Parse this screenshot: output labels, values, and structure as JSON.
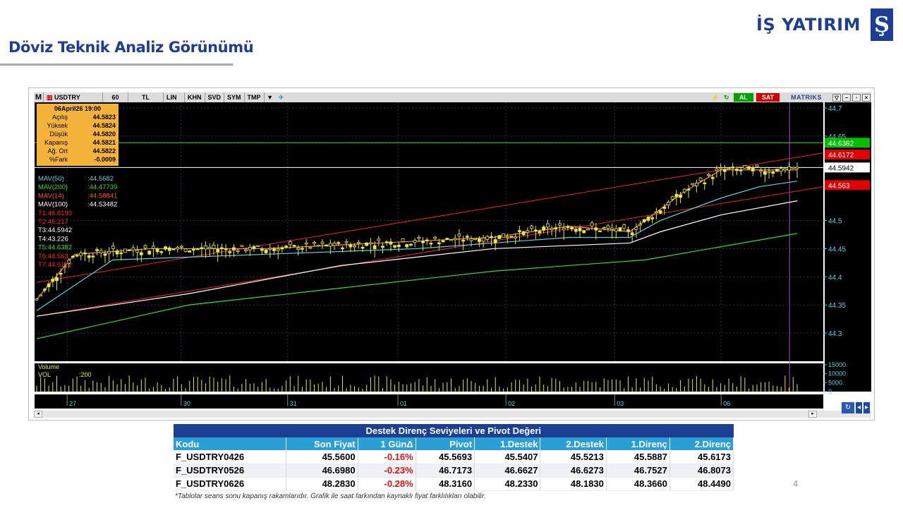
{
  "page": {
    "title": "Döviz Teknik Analiz Görünümü",
    "brand_text": "İŞ YATIRIM",
    "brand_logo_glyph": "Ş",
    "page_number": "4",
    "footnote": "*Tablolar seans sonu kapanış rakamlarıdır. Grafik ile saat farkından kaynaklı fiyat farklılıkları olabilir."
  },
  "toolbar": {
    "m_label": "M",
    "symbol": "USDTRY",
    "period": "60",
    "currency": "TL",
    "scale_lin": "LIN",
    "khn": "KHN",
    "svd": "SVD",
    "sym": "SYM",
    "tmp": "TMP",
    "buy": "AL",
    "sell": "SAT",
    "brand": "MATRIKS",
    "icons": [
      "search-icon",
      "dropdown-icon",
      "twitter-icon",
      "alarm-icon",
      "refresh-icon"
    ]
  },
  "info_box": {
    "date": "06April26 19:00",
    "rows": [
      {
        "label": "Açılış",
        "value": "44.5823"
      },
      {
        "label": "Yüksek",
        "value": "44.5824"
      },
      {
        "label": "Düşük",
        "value": "44.5820"
      },
      {
        "label": "Kapanış",
        "value": "44.5821"
      },
      {
        "label": "Ağ. Ort",
        "value": "44.5822"
      },
      {
        "label": "%Fark",
        "value": "-0.0009"
      }
    ]
  },
  "indicators": [
    {
      "label": "MAV(50)",
      "value": ":44.5682",
      "color": "#5fd0e0"
    },
    {
      "label": "MAV(200)",
      "value": ":44.47739",
      "color": "#33dd33"
    },
    {
      "label": "MAV(14)",
      "value": ":44.58841",
      "color": "#ff5533"
    },
    {
      "label": "MAV(100)",
      "value": ":44.53482",
      "color": "#ffffff"
    },
    {
      "label": "T1:46.8199",
      "value": "",
      "color": "#ff2222"
    },
    {
      "label": "T2:46.217",
      "value": "",
      "color": "#ff2222"
    },
    {
      "label": "T3:44.5942",
      "value": "",
      "color": "#ffffff"
    },
    {
      "label": "T4:43.226",
      "value": "",
      "color": "#ffffff"
    },
    {
      "label": "T5:44.6382",
      "value": "",
      "color": "#33dd33"
    },
    {
      "label": "T6:44.563",
      "value": "",
      "color": "#ff2222"
    },
    {
      "label": "T7:44.6172",
      "value": "",
      "color": "#ff2222"
    }
  ],
  "chart_data": {
    "type": "candlestick",
    "y_ticks": [
      "44.7",
      "44.65",
      "44.5",
      "44.45",
      "44.4",
      "44.35",
      "44.3"
    ],
    "ylim": [
      44.25,
      44.71
    ],
    "price_tags": [
      {
        "value": "44.6382",
        "color": "#00c000",
        "price": 44.6382
      },
      {
        "value": "44.6172",
        "color": "#e00000",
        "price": 44.6172
      },
      {
        "value": "44.5942",
        "color": "#ffffff",
        "price": 44.5942
      },
      {
        "value": "44.563",
        "color": "#e00000",
        "price": 44.563
      }
    ],
    "x_labels": [
      "27",
      "30",
      "31",
      "01",
      "02",
      "03",
      "06"
    ],
    "volume_label": "Volume",
    "volume_series": "VOL",
    "volume_value": ":200",
    "volume_ticks": [
      "15000.",
      "10000.",
      "5000.",
      "0"
    ],
    "volume_ylim": [
      0,
      15000
    ],
    "upper_channel": [
      [
        0,
        44.39
      ],
      [
        1,
        44.62
      ]
    ],
    "lower_channel": [
      [
        0,
        44.33
      ],
      [
        1,
        44.56
      ]
    ],
    "ma14": [
      [
        0,
        44.36
      ],
      [
        0.05,
        44.44
      ],
      [
        0.15,
        44.45
      ],
      [
        0.3,
        44.45
      ],
      [
        0.45,
        44.46
      ],
      [
        0.6,
        44.47
      ],
      [
        0.7,
        44.49
      ],
      [
        0.78,
        44.48
      ],
      [
        0.8,
        44.5
      ],
      [
        0.85,
        44.55
      ],
      [
        0.9,
        44.59
      ],
      [
        1,
        44.59
      ]
    ],
    "ma50": [
      [
        0,
        44.34
      ],
      [
        0.1,
        44.43
      ],
      [
        0.3,
        44.44
      ],
      [
        0.5,
        44.45
      ],
      [
        0.7,
        44.47
      ],
      [
        0.78,
        44.47
      ],
      [
        0.82,
        44.5
      ],
      [
        0.9,
        44.54
      ],
      [
        0.95,
        44.56
      ],
      [
        1,
        44.57
      ]
    ],
    "ma100": [
      [
        0,
        44.33
      ],
      [
        0.2,
        44.37
      ],
      [
        0.4,
        44.42
      ],
      [
        0.6,
        44.45
      ],
      [
        0.78,
        44.46
      ],
      [
        0.82,
        44.48
      ],
      [
        0.9,
        44.51
      ],
      [
        1,
        44.535
      ]
    ],
    "ma200": [
      [
        0,
        44.29
      ],
      [
        0.2,
        44.35
      ],
      [
        0.4,
        44.38
      ],
      [
        0.6,
        44.41
      ],
      [
        0.8,
        44.43
      ],
      [
        1,
        44.477
      ]
    ],
    "hline": 44.5942,
    "hline_green": 44.6382
  },
  "table": {
    "title": "Destek Direnç Seviyeleri ve Pivot Değeri",
    "headers": [
      "Kodu",
      "Son Fiyat",
      "1 GünΔ",
      "Pivot",
      "1.Destek",
      "2.Destek",
      "1.Direnç",
      "2.Direnç"
    ],
    "rows": [
      [
        "F_USDTRY0426",
        "45.5600",
        "-0.16%",
        "45.5693",
        "45.5407",
        "45.5213",
        "45.5887",
        "45.6173"
      ],
      [
        "F_USDTRY0526",
        "46.6980",
        "-0.23%",
        "46.7173",
        "46.6627",
        "46.6273",
        "46.7527",
        "46.8073"
      ],
      [
        "F_USDTRY0626",
        "48.2830",
        "-0.28%",
        "48.3160",
        "48.2330",
        "48.1830",
        "48.3660",
        "48.4490"
      ]
    ]
  }
}
